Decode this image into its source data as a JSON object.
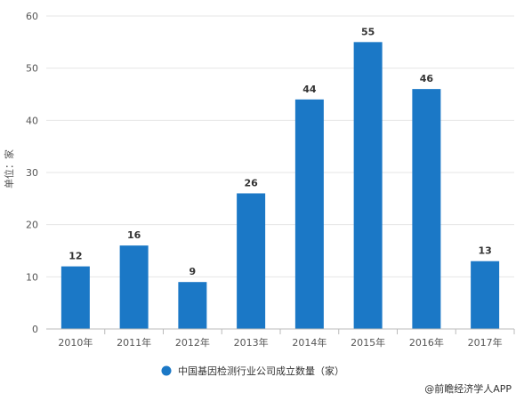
{
  "chart_data": {
    "type": "bar",
    "categories": [
      "2010年",
      "2011年",
      "2012年",
      "2013年",
      "2014年",
      "2015年",
      "2016年",
      "2017年"
    ],
    "series": [
      {
        "name": "中国基因检测行业公司成立数量（家）",
        "values": [
          12,
          16,
          9,
          26,
          44,
          55,
          46,
          13
        ],
        "color": "#1b78c6"
      }
    ],
    "ylabel": "单位：家",
    "ylim": [
      0,
      60
    ],
    "yticks": [
      0,
      10,
      20,
      30,
      40,
      50,
      60
    ],
    "grid": true,
    "legend": "bottom-center",
    "data_labels": true
  },
  "source": "@前瞻经济学人APP"
}
